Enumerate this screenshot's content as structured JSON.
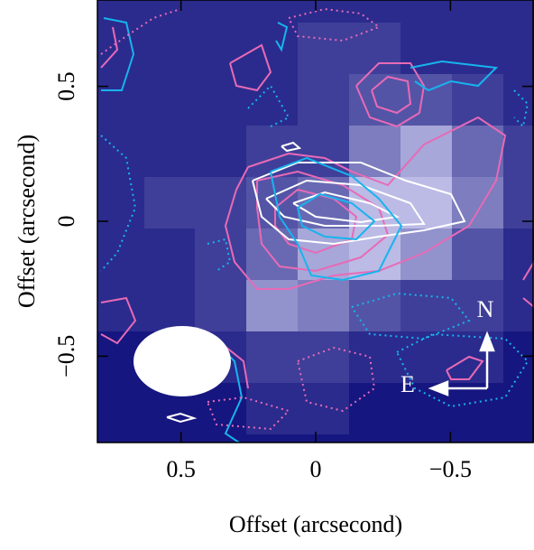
{
  "chart_data": {
    "type": "image",
    "xlabel": "Offset (arcsecond)",
    "ylabel": "Offset (arcsecond)",
    "xlim": [
      0.81,
      -0.81
    ],
    "ylim": [
      -0.82,
      0.82
    ],
    "xticks": [
      0.5,
      0,
      {
        "value": -0.5,
        "label": "−0.5"
      }
    ],
    "yticks": [
      {
        "value": -0.5,
        "label": "−0.5"
      },
      0,
      0.5
    ],
    "annotations": {
      "north": "N",
      "east": "E"
    }
  }
}
